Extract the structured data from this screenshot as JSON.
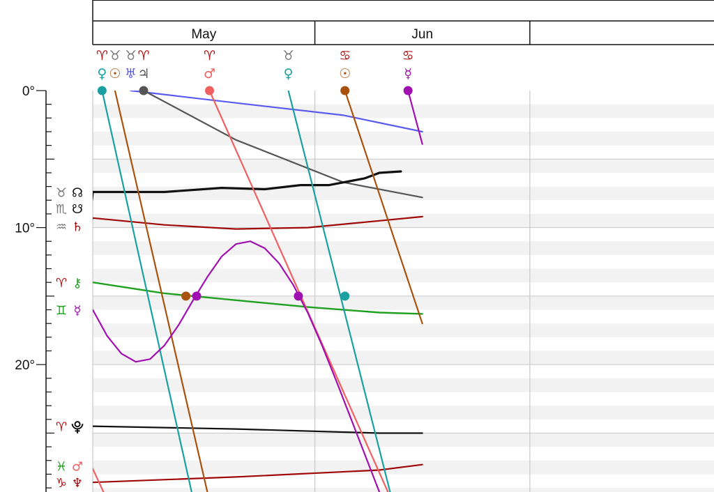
{
  "chart_data": {
    "type": "line",
    "title": "",
    "xlabel": "",
    "ylabel": "",
    "months": [
      {
        "label": "May",
        "start_day": 0,
        "end_day": 31
      },
      {
        "label": "Jun",
        "start_day": 31,
        "end_day": 61
      },
      {
        "label": "",
        "start_day": 61,
        "end_day": 65
      }
    ],
    "x_range_days": [
      0,
      86.7
    ],
    "y_ticks": [
      {
        "value": 0,
        "label": "0°"
      },
      {
        "value": 10,
        "label": "10°"
      },
      {
        "value": 20,
        "label": "20°"
      }
    ],
    "ylim": [
      0,
      29.3
    ],
    "grid": true,
    "colors": {
      "sign_red": "#b01010",
      "sign_gray": "#777777",
      "sign_green": "#18a018",
      "venus": "#1aa0a0",
      "sun": "#a8520e",
      "uranus": "#5a5af0",
      "jupiter": "#555555",
      "mars": "#f06060",
      "mercury": "#a010b0",
      "node": "#111111",
      "saturn": "#a00808",
      "chiron": "#20a020",
      "pluto": "#111111",
      "neptune": "#a00808"
    },
    "top_labels": [
      {
        "sign": "♈",
        "sign_color": "#b01010",
        "planet": "♀",
        "planet_color": "#1aa0a0",
        "day": 1.3
      },
      {
        "sign": "♉",
        "sign_color": "#777777",
        "planet": "☉",
        "planet_color": "#a8520e",
        "day": 3.1
      },
      {
        "sign": "♉",
        "sign_color": "#777777",
        "planet": "♅",
        "planet_color": "#5a5af0",
        "day": 5.3
      },
      {
        "sign": "♈",
        "sign_color": "#b01010",
        "planet": "♃",
        "planet_color": "#555555",
        "day": 7.1
      },
      {
        "sign": "♈",
        "sign_color": "#b01010",
        "planet": "♂",
        "planet_color": "#f06060",
        "day": 16.3
      },
      {
        "sign": "♉",
        "sign_color": "#777777",
        "planet": "♀",
        "planet_color": "#1aa0a0",
        "day": 27.3
      },
      {
        "sign": "♋",
        "sign_color": "#b01010",
        "planet": "☉",
        "planet_color": "#a8520e",
        "day": 35.2
      },
      {
        "sign": "♋",
        "sign_color": "#b01010",
        "planet": "☿",
        "planet_color": "#a010b0",
        "day": 44.0
      }
    ],
    "left_labels": [
      {
        "sign": "♉",
        "sign_color": "#777777",
        "planet": "☊",
        "planet_color": "#111111",
        "value": 7.4
      },
      {
        "sign": "♏",
        "sign_color": "#777777",
        "planet": "☋",
        "planet_color": "#111111",
        "value": 8.6
      },
      {
        "sign": "♒",
        "sign_color": "#777777",
        "planet": "♄",
        "planet_color": "#a00808",
        "value": 9.9
      },
      {
        "sign": "♈",
        "sign_color": "#b01010",
        "planet": "⚷",
        "planet_color": "#20a020",
        "value": 14.0
      },
      {
        "sign": "♊",
        "sign_color": "#18a018",
        "planet": "☿",
        "planet_color": "#a010b0",
        "value": 16.0
      },
      {
        "sign": "♈",
        "sign_color": "#b01010",
        "planet": "⯓",
        "planet_color": "#111111",
        "value": 24.5
      },
      {
        "sign": "♓",
        "sign_color": "#18a018",
        "planet": "♂",
        "planet_color": "#f06060",
        "value": 27.4
      },
      {
        "sign": "♑",
        "sign_color": "#b01010",
        "planet": "♆",
        "planet_color": "#a00808",
        "value": 28.6
      }
    ],
    "series": [
      {
        "color": "#5a5af0",
        "width": 2.2,
        "points": [
          [
            5.1,
            -0.08
          ],
          [
            5.3,
            0
          ],
          [
            20,
            0.9
          ],
          [
            35,
            1.8
          ],
          [
            46,
            3.0
          ]
        ]
      },
      {
        "color": "#555555",
        "width": 2.2,
        "points": [
          [
            7.1,
            0
          ],
          [
            20,
            3.6
          ],
          [
            35,
            6.7
          ],
          [
            46,
            7.8
          ]
        ]
      },
      {
        "color": "#111111",
        "width": 3.2,
        "points": [
          [
            0,
            7.4
          ],
          [
            10,
            7.4
          ],
          [
            18,
            7.1
          ],
          [
            24,
            7.2
          ],
          [
            29,
            6.9
          ],
          [
            33,
            6.9
          ],
          [
            38,
            6.4
          ],
          [
            40,
            6.0
          ],
          [
            43,
            5.9
          ]
        ]
      },
      {
        "color": "#111111",
        "width": 3.2,
        "points": [
          [
            -0.4,
            8.8
          ],
          [
            -0.1,
            7.9
          ],
          [
            0,
            7.4
          ]
        ]
      },
      {
        "color": "#a00808",
        "width": 2.2,
        "points": [
          [
            -0.4,
            9.9
          ],
          [
            -0.2,
            9.6
          ],
          [
            0,
            9.3
          ],
          [
            10,
            9.8
          ],
          [
            20,
            10.1
          ],
          [
            30,
            10.0
          ],
          [
            40,
            9.5
          ],
          [
            46,
            9.2
          ]
        ]
      },
      {
        "color": "#20a020",
        "width": 2.4,
        "points": [
          [
            0,
            14.0
          ],
          [
            10,
            14.8
          ],
          [
            20,
            15.3
          ],
          [
            30,
            15.8
          ],
          [
            40,
            16.2
          ],
          [
            46,
            16.3
          ]
        ]
      },
      {
        "color": "#111111",
        "width": 2.2,
        "points": [
          [
            0,
            24.5
          ],
          [
            20,
            24.7
          ],
          [
            40,
            25.0
          ],
          [
            46,
            25.0
          ]
        ]
      },
      {
        "color": "#a00808",
        "width": 2.2,
        "points": [
          [
            0,
            28.6
          ],
          [
            20,
            28.2
          ],
          [
            40,
            27.7
          ],
          [
            46,
            27.3
          ]
        ]
      },
      {
        "color": "#1aa0a0",
        "width": 2.2,
        "points": [
          [
            1.3,
            0
          ],
          [
            13.8,
            29.3
          ]
        ]
      },
      {
        "color": "#a8520e",
        "width": 2.2,
        "points": [
          [
            3.1,
            0
          ],
          [
            16.0,
            29.3
          ]
        ]
      },
      {
        "color": "#f06060",
        "width": 2.2,
        "points": [
          [
            16.3,
            0
          ],
          [
            41.2,
            29.3
          ]
        ]
      },
      {
        "color": "#f06060",
        "width": 2.2,
        "points": [
          [
            -0.4,
            27.4
          ],
          [
            0,
            27.6
          ],
          [
            1.5,
            29.3
          ]
        ]
      },
      {
        "color": "#1aa0a0",
        "width": 2.2,
        "points": [
          [
            27.3,
            0
          ],
          [
            41.5,
            29.3
          ]
        ]
      },
      {
        "color": "#a8520e",
        "width": 2.2,
        "points": [
          [
            35.2,
            0
          ],
          [
            46,
            17.0
          ]
        ]
      },
      {
        "color": "#a010b0",
        "width": 2.2,
        "points": [
          [
            44.0,
            0
          ],
          [
            46,
            3.9
          ]
        ]
      },
      {
        "color": "#a010b0",
        "width": 2.2,
        "points": [
          [
            0,
            16.0
          ],
          [
            2,
            17.9
          ],
          [
            4,
            19.2
          ],
          [
            6,
            19.8
          ],
          [
            8,
            19.6
          ],
          [
            10,
            18.6
          ],
          [
            12,
            17.1
          ],
          [
            14,
            15.3
          ],
          [
            16,
            13.6
          ],
          [
            18,
            12.1
          ],
          [
            20,
            11.2
          ],
          [
            22,
            11.0
          ],
          [
            24,
            11.5
          ],
          [
            26,
            12.6
          ],
          [
            28,
            14.2
          ],
          [
            30,
            16.2
          ],
          [
            32,
            18.6
          ],
          [
            34,
            21.2
          ],
          [
            36,
            23.9
          ],
          [
            38,
            26.6
          ],
          [
            40,
            29.3
          ]
        ]
      }
    ],
    "markers": [
      {
        "day": 1.3,
        "value": 0,
        "color": "#1aa0a0"
      },
      {
        "day": 7.1,
        "value": 0,
        "color": "#555555"
      },
      {
        "day": 16.3,
        "value": 0,
        "color": "#f06060"
      },
      {
        "day": 35.2,
        "value": 0,
        "color": "#a8520e"
      },
      {
        "day": 44.0,
        "value": 0,
        "color": "#a010b0"
      },
      {
        "day": 13.0,
        "value": 15.0,
        "color": "#a8520e"
      },
      {
        "day": 14.5,
        "value": 15.0,
        "color": "#a010b0"
      },
      {
        "day": 28.7,
        "value": 15.0,
        "color": "#a010b0"
      },
      {
        "day": 35.2,
        "value": 15.0,
        "color": "#1aa0a0"
      }
    ]
  }
}
